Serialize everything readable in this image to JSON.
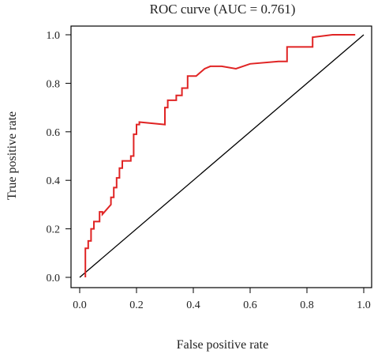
{
  "chart_data": {
    "type": "line",
    "title": "ROC curve (AUC = 0.761)",
    "xlabel": "False positive rate",
    "ylabel": "True positive rate",
    "xlim": [
      0,
      1
    ],
    "ylim": [
      0,
      1
    ],
    "x_ticks": [
      0.0,
      0.2,
      0.4,
      0.6,
      0.8,
      1.0
    ],
    "x_tick_labels": [
      "0.0",
      "0.2",
      "0.4",
      "0.6",
      "0.8",
      "1.0"
    ],
    "y_ticks": [
      0.0,
      0.2,
      0.4,
      0.6,
      0.8,
      1.0
    ],
    "y_tick_labels": [
      "0.0",
      "0.2",
      "0.4",
      "0.6",
      "0.8",
      "1.0"
    ],
    "grid": false,
    "colors": {
      "roc": "#e02424",
      "diagonal": "#000000",
      "axes": "#000000"
    },
    "series": [
      {
        "x": [
          0.02,
          0.02,
          0.03,
          0.03,
          0.04,
          0.04,
          0.05,
          0.05,
          0.07,
          0.07,
          0.08,
          0.08,
          0.11,
          0.11,
          0.12,
          0.12,
          0.13,
          0.13,
          0.14,
          0.14,
          0.15,
          0.15,
          0.18,
          0.18,
          0.19,
          0.19,
          0.2,
          0.2,
          0.21,
          0.21,
          0.3,
          0.3,
          0.31,
          0.31,
          0.34,
          0.34,
          0.36,
          0.36,
          0.38,
          0.38,
          0.41,
          0.42,
          0.44,
          0.46,
          0.5,
          0.55,
          0.6,
          0.7,
          0.73,
          0.73,
          0.82,
          0.82,
          0.89,
          0.94,
          0.97
        ],
        "y": [
          0.0,
          0.12,
          0.12,
          0.15,
          0.15,
          0.2,
          0.2,
          0.23,
          0.23,
          0.27,
          0.27,
          0.26,
          0.3,
          0.33,
          0.33,
          0.37,
          0.37,
          0.41,
          0.41,
          0.45,
          0.45,
          0.48,
          0.48,
          0.5,
          0.5,
          0.59,
          0.59,
          0.63,
          0.63,
          0.64,
          0.63,
          0.7,
          0.7,
          0.73,
          0.73,
          0.75,
          0.75,
          0.78,
          0.78,
          0.83,
          0.83,
          0.84,
          0.86,
          0.87,
          0.87,
          0.86,
          0.88,
          0.89,
          0.89,
          0.95,
          0.95,
          0.99,
          1.0,
          1.0,
          1.0
        ]
      },
      {
        "x": [
          0,
          1
        ],
        "y": [
          0,
          1
        ]
      }
    ]
  }
}
